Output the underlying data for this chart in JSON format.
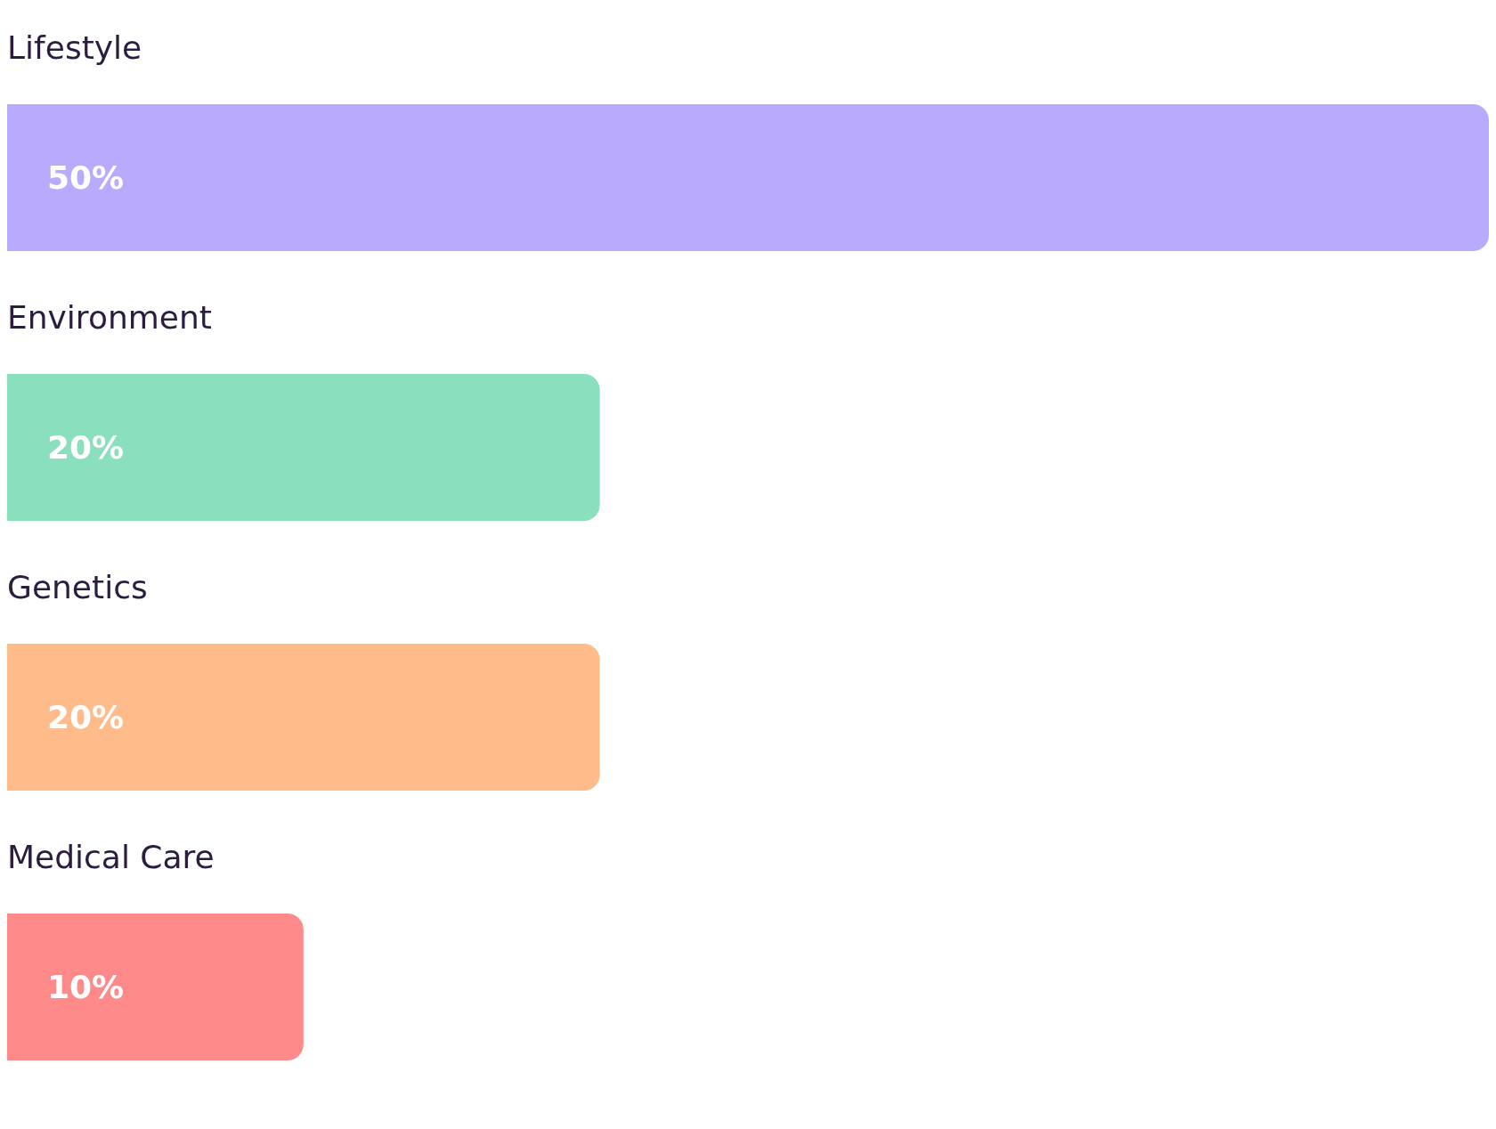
{
  "chart_data": {
    "type": "bar",
    "orientation": "horizontal",
    "categories": [
      "Lifestyle",
      "Environment",
      "Genetics",
      "Medical Care"
    ],
    "values": [
      50,
      20,
      20,
      10
    ],
    "colors": [
      "#baaafe",
      "#8adfbd",
      "#ffbc8a",
      "#ff8a8a"
    ],
    "value_labels": [
      "50%",
      "20%",
      "20%",
      "10%"
    ]
  }
}
